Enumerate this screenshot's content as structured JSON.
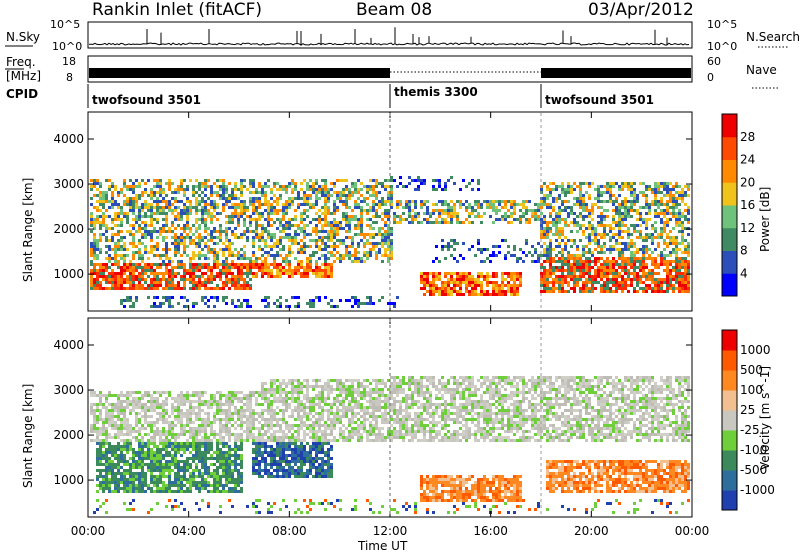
{
  "header": {
    "station": "Rankin Inlet (fitACF)",
    "beam": "Beam 08",
    "date": "03/Apr/2012"
  },
  "strips": {
    "nsky_label": "N.Sky",
    "nsky_ticks": [
      "10^5",
      "10^0"
    ],
    "nsearch_label": "N.Search",
    "nsearch_ticks": [
      "10^5",
      "10^0"
    ],
    "freq_label": "Freq.",
    "freq_unit": "[MHz]",
    "freq_ticks": [
      "18",
      "8"
    ],
    "nave_label": "Nave",
    "nave_ticks": [
      "60",
      "0"
    ],
    "cpid_label": "CPID",
    "cpid_segments": [
      {
        "name": "twofsound 3501",
        "start_hour": 0,
        "end_hour": 12
      },
      {
        "name": "themis 3300",
        "start_hour": 12,
        "end_hour": 18
      },
      {
        "name": "twofsound 3501",
        "start_hour": 18,
        "end_hour": 24
      }
    ]
  },
  "chart_data": [
    {
      "type": "heatmap",
      "name": "Power",
      "ylabel": "Slant Range [km]",
      "xlabel": "Time UT",
      "x_ticks": [
        "00:00",
        "04:00",
        "08:00",
        "12:00",
        "16:00",
        "20:00",
        "00:00"
      ],
      "xlim_hours": [
        0,
        24
      ],
      "y_ticks": [
        "1000",
        "2000",
        "3000",
        "4000"
      ],
      "ylim_km": [
        180,
        4600
      ],
      "colorbar_label": "Power [dB]",
      "colorbar_ticks": [
        "4",
        "8",
        "12",
        "16",
        "20",
        "24",
        "28"
      ],
      "colorbar_colors": [
        "#0000ff",
        "#2b4fb8",
        "#3f8a63",
        "#6ec27b",
        "#f0c21c",
        "#ff8a00",
        "#ff4a00",
        "#ee0000"
      ]
    },
    {
      "type": "heatmap",
      "name": "Velocity",
      "ylabel": "Slant Range [km]",
      "xlabel": "Time UT",
      "x_ticks": [
        "00:00",
        "04:00",
        "08:00",
        "12:00",
        "16:00",
        "20:00",
        "00:00"
      ],
      "xlim_hours": [
        0,
        24
      ],
      "y_ticks": [
        "1000",
        "2000",
        "3000",
        "4000"
      ],
      "ylim_km": [
        180,
        4600
      ],
      "colorbar_label": "Velocity [m s^-1]",
      "colorbar_ticks": [
        "1000",
        "500",
        "100",
        "25",
        "-25",
        "-100",
        "-500",
        "-1000"
      ],
      "colorbar_colors": [
        "#2040b0",
        "#2e6e9c",
        "#3c8a5c",
        "#6ecf3a",
        "#c8c8c0",
        "#f2c090",
        "#ff8820",
        "#ff5a00",
        "#ee0000"
      ]
    }
  ],
  "x_axis_title": "Time UT"
}
